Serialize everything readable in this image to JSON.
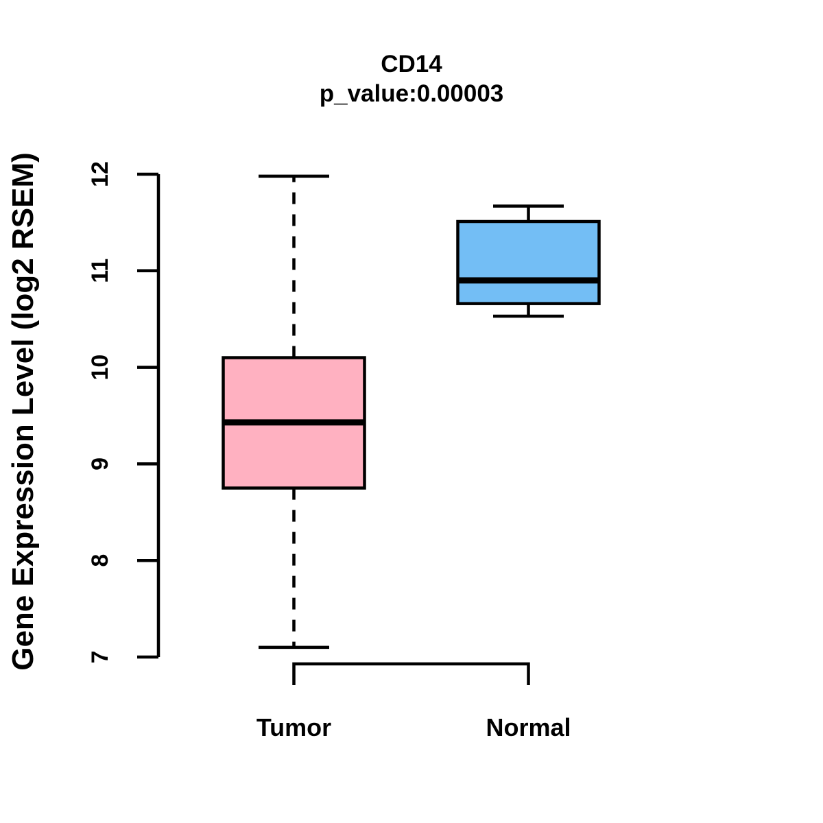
{
  "chart_data": {
    "type": "boxplot",
    "title": "CD14",
    "subtitle": "p_value:0.00003",
    "ylabel": "Gene Expression Level (log2 RSEM)",
    "xlabel": "",
    "ylim": [
      7,
      12
    ],
    "yticks": [
      "7",
      "8",
      "9",
      "10",
      "11",
      "12"
    ],
    "categories": [
      "Tumor",
      "Normal"
    ],
    "series": [
      {
        "name": "Tumor",
        "color": "#FFB1C1",
        "whisker_style": "dashed",
        "whisker_low": 7.1,
        "q1": 8.75,
        "median": 9.43,
        "q3": 10.1,
        "whisker_high": 11.98
      },
      {
        "name": "Normal",
        "color": "#73BEF5",
        "whisker_style": "solid",
        "whisker_low": 10.53,
        "q1": 10.66,
        "median": 10.9,
        "q3": 11.51,
        "whisker_high": 11.67
      }
    ],
    "axis_color": "#000000",
    "grid": false,
    "legend_position": "none"
  }
}
